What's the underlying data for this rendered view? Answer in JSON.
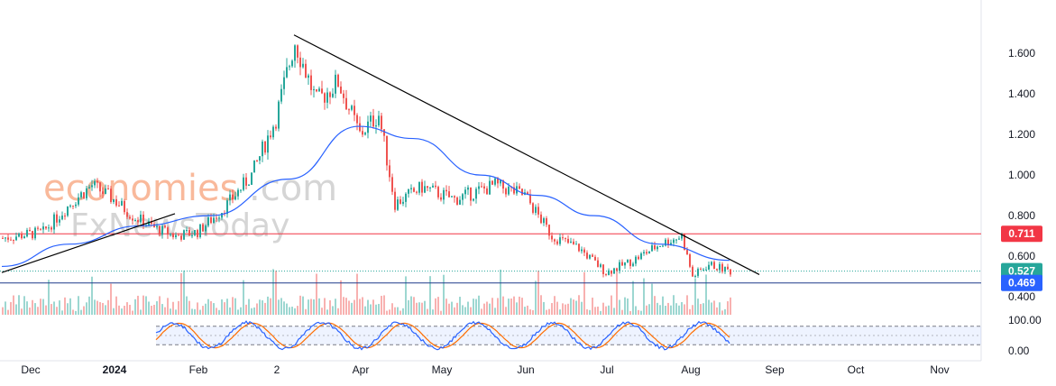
{
  "watermark": {
    "brand_line1": "economies",
    "brand_line1_suffix": ".com",
    "brand_line2": "FxNewsToday"
  },
  "colors": {
    "up": "#26a69a",
    "down": "#ef5350",
    "ma": "#2962ff",
    "resistance": "#f23645",
    "support": "#2962ff",
    "current": "#26a69a",
    "stoch_k": "#2962ff",
    "stoch_d": "#ff6d00",
    "trendline": "#000000",
    "watermark_orange": "#f7a27a",
    "watermark_gray": "#c8c8c8"
  },
  "chart_data": {
    "type": "candlestick",
    "price_axis": {
      "ticks": [
        0.4,
        0.6,
        0.8,
        1.0,
        1.2,
        1.4,
        1.6
      ],
      "tick_labels": [
        "0.400",
        "0.600",
        "0.800",
        "1.000",
        "1.200",
        "1.400",
        "1.600"
      ],
      "ylim": [
        0.36,
        1.74
      ]
    },
    "time_axis": {
      "labels": [
        "Dec",
        "2024",
        "Feb",
        "2",
        "Apr",
        "May",
        "Jun",
        "Jul",
        "Aug",
        "Sep",
        "Oct",
        "Nov"
      ],
      "bold": [
        "2024"
      ]
    },
    "price_tags": [
      {
        "label": "0.711",
        "value": 0.711,
        "kind": "resistance"
      },
      {
        "label": "0.527",
        "value": 0.527,
        "kind": "current"
      },
      {
        "label": "0.469",
        "value": 0.469,
        "kind": "support"
      }
    ],
    "trendlines": [
      {
        "name": "descending",
        "from": {
          "date": "2024-03-12",
          "price": 1.69
        },
        "to": {
          "date": "2024-08-31",
          "price": 0.51
        }
      },
      {
        "name": "ascending",
        "from": {
          "date": "2023-11-25",
          "price": 0.52
        },
        "to": {
          "date": "2024-01-28",
          "price": 0.81
        }
      }
    ],
    "ohlc_close": [
      {
        "date": "2023-11-25",
        "close": 0.69
      },
      {
        "date": "2023-12-10",
        "close": 0.72
      },
      {
        "date": "2023-12-20",
        "close": 0.86
      },
      {
        "date": "2023-12-28",
        "close": 0.95
      },
      {
        "date": "2024-01-05",
        "close": 0.88
      },
      {
        "date": "2024-01-12",
        "close": 0.8
      },
      {
        "date": "2024-01-20",
        "close": 0.74
      },
      {
        "date": "2024-01-28",
        "close": 0.7
      },
      {
        "date": "2024-02-05",
        "close": 0.72
      },
      {
        "date": "2024-02-15",
        "close": 0.84
      },
      {
        "date": "2024-02-25",
        "close": 1.0
      },
      {
        "date": "2024-03-05",
        "close": 1.28
      },
      {
        "date": "2024-03-12",
        "close": 1.66
      },
      {
        "date": "2024-03-20",
        "close": 1.36
      },
      {
        "date": "2024-03-28",
        "close": 1.46
      },
      {
        "date": "2024-04-05",
        "close": 1.2
      },
      {
        "date": "2024-04-12",
        "close": 1.3
      },
      {
        "date": "2024-04-18",
        "close": 0.86
      },
      {
        "date": "2024-04-28",
        "close": 0.94
      },
      {
        "date": "2024-05-10",
        "close": 0.88
      },
      {
        "date": "2024-05-25",
        "close": 0.95
      },
      {
        "date": "2024-06-05",
        "close": 0.9
      },
      {
        "date": "2024-06-15",
        "close": 0.7
      },
      {
        "date": "2024-06-25",
        "close": 0.64
      },
      {
        "date": "2024-07-05",
        "close": 0.52
      },
      {
        "date": "2024-07-15",
        "close": 0.58
      },
      {
        "date": "2024-07-25",
        "close": 0.66
      },
      {
        "date": "2024-08-02",
        "close": 0.7
      },
      {
        "date": "2024-08-06",
        "close": 0.5
      },
      {
        "date": "2024-08-12",
        "close": 0.56
      },
      {
        "date": "2024-08-20",
        "close": 0.527
      }
    ],
    "moving_average": [
      {
        "date": "2023-11-25",
        "value": 0.55
      },
      {
        "date": "2023-12-20",
        "value": 0.66
      },
      {
        "date": "2024-01-15",
        "value": 0.75
      },
      {
        "date": "2024-02-10",
        "value": 0.8
      },
      {
        "date": "2024-03-10",
        "value": 0.98
      },
      {
        "date": "2024-04-05",
        "value": 1.24
      },
      {
        "date": "2024-04-25",
        "value": 1.18
      },
      {
        "date": "2024-05-20",
        "value": 1.0
      },
      {
        "date": "2024-06-10",
        "value": 0.9
      },
      {
        "date": "2024-07-01",
        "value": 0.8
      },
      {
        "date": "2024-07-25",
        "value": 0.66
      },
      {
        "date": "2024-08-20",
        "value": 0.58
      }
    ],
    "stochastic": {
      "ticks": [
        0.0,
        100.0
      ],
      "tick_labels": [
        "0.00",
        "100.00"
      ],
      "bands": [
        20,
        80
      ]
    }
  }
}
